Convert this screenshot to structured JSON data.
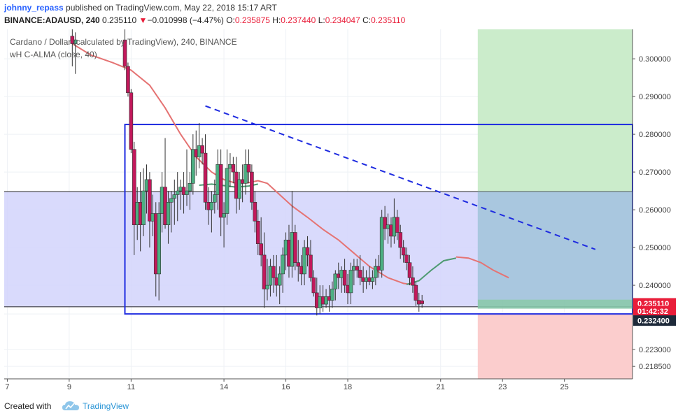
{
  "header": {
    "user": "johnny_repass",
    "published_text": "published on TradingView.com, May 22, 2018 15:17 ART",
    "symbol": "BINANCE:ADAUSD, 240",
    "last": "0.235110",
    "change_arrow": "▼",
    "change": "−0.010998 (−4.47%)",
    "o_label": "O:",
    "o_value": "0.235875",
    "h_label": "H:",
    "h_value": "0.237440",
    "l_label": "L:",
    "l_value": "0.234047",
    "c_label": "C:",
    "c_value": "0.235110"
  },
  "legend": {
    "line1": "Cardano / Dollar (calculated by TradingView), 240, BINANCE",
    "line2": "wH C-ALMA (close, 40)"
  },
  "footer": {
    "created_with": "Created with",
    "brand": "TradingView",
    "logo_icon": "tradingview-cloud-icon"
  },
  "colors": {
    "up": "#4caf82",
    "down": "#c2185b",
    "alma_red": "#e57373",
    "alma_green": "#4e9a71",
    "rect_blue": "#1e2be0",
    "target_green": "#c8ebc8",
    "stop_red": "#fbcaca",
    "zone_fill": "#d2d3fb",
    "price_badge": "#e91e3a",
    "badge_dark": "#1e2a3a"
  },
  "chart_data": {
    "type": "candlestick",
    "y_axis": {
      "ticks": [
        0.3,
        0.29,
        0.28,
        0.27,
        0.26,
        0.25,
        0.24,
        0.2324,
        0.223,
        0.2185
      ],
      "tick_labels": [
        "0.300000",
        "0.290000",
        "0.280000",
        "0.270000",
        "0.260000",
        "0.250000",
        "0.240000",
        "0.232400",
        "0.223000",
        "0.218500"
      ],
      "range": [
        0.2152,
        0.3078
      ]
    },
    "x_axis": {
      "tick_labels": [
        "7",
        "9",
        "11",
        "14",
        "16",
        "18",
        "21",
        "23",
        "25"
      ],
      "tick_days": [
        7,
        9,
        11,
        14,
        16,
        18,
        21,
        23,
        25
      ],
      "range": [
        6.9,
        27.2
      ]
    },
    "price_badges": [
      {
        "label": "0.235110",
        "value": 0.23511,
        "kind": "last"
      },
      {
        "label": "01:42:32",
        "value": 0.2338,
        "kind": "countdown"
      },
      {
        "label": "0.232400",
        "value": 0.2324,
        "kind": "level"
      }
    ],
    "boxes": [
      {
        "name": "consolidation-zone",
        "x_from": 6.9,
        "x_to": 27.2,
        "y_from": 0.2343,
        "y_to": 0.2648
      },
      {
        "name": "range-rectangle",
        "x_from": 10.8,
        "x_to": 27.2,
        "y_from": 0.2324,
        "y_to": 0.2826
      },
      {
        "name": "target-zone",
        "x_from": 22.2,
        "x_to": 27.2,
        "y_from": 0.2362,
        "y_to": 0.3078
      },
      {
        "name": "stop-zone",
        "x_from": 22.2,
        "x_to": 27.2,
        "y_from": 0.2152,
        "y_to": 0.2324
      }
    ],
    "trendline": {
      "x1": 13.4,
      "y1": 0.2875,
      "x2": 26.0,
      "y2": 0.2495
    },
    "alma": {
      "red": [
        [
          9.1,
          0.304
        ],
        [
          9.7,
          0.301
        ],
        [
          10.4,
          0.299
        ],
        [
          11.0,
          0.297
        ],
        [
          11.6,
          0.293
        ],
        [
          12.1,
          0.287
        ],
        [
          12.6,
          0.28
        ],
        [
          13.1,
          0.274
        ],
        [
          13.6,
          0.27
        ],
        [
          14.0,
          0.268
        ],
        [
          14.4,
          0.267
        ],
        [
          14.8,
          0.2672
        ],
        [
          15.1,
          0.2677
        ],
        [
          15.4,
          0.267
        ],
        [
          15.8,
          0.264
        ],
        [
          16.2,
          0.261
        ],
        [
          16.7,
          0.258
        ],
        [
          17.2,
          0.2548
        ],
        [
          17.7,
          0.252
        ],
        [
          18.2,
          0.2485
        ],
        [
          18.7,
          0.245
        ],
        [
          19.3,
          0.242
        ],
        [
          19.8,
          0.2405
        ],
        [
          20.2,
          0.24
        ]
      ],
      "green": [
        [
          13.2,
          0.2665
        ],
        [
          13.6,
          0.2668
        ],
        [
          14.0,
          0.2664
        ],
        [
          14.4,
          0.266
        ],
        [
          14.8,
          0.2663
        ],
        [
          15.1,
          0.2668
        ]
      ],
      "green2": [
        [
          19.9,
          0.2402
        ],
        [
          20.3,
          0.2412
        ],
        [
          20.7,
          0.244
        ],
        [
          21.1,
          0.2465
        ],
        [
          21.5,
          0.2472
        ]
      ],
      "red2": [
        [
          21.5,
          0.2475
        ],
        [
          21.9,
          0.2472
        ],
        [
          22.3,
          0.246
        ],
        [
          22.7,
          0.244
        ],
        [
          23.2,
          0.242
        ]
      ]
    },
    "candles": [
      {
        "x": 9.1,
        "o": 0.306,
        "h": 0.308,
        "l": 0.298,
        "c": 0.304
      },
      {
        "x": 9.2,
        "o": 0.304,
        "h": 0.307,
        "l": 0.296,
        "c": 0.305
      },
      {
        "x": 10.8,
        "o": 0.305,
        "h": 0.308,
        "l": 0.297,
        "c": 0.298
      },
      {
        "x": 10.9,
        "o": 0.298,
        "h": 0.299,
        "l": 0.29,
        "c": 0.291
      },
      {
        "x": 11.0,
        "o": 0.291,
        "h": 0.292,
        "l": 0.275,
        "c": 0.276
      },
      {
        "x": 11.1,
        "o": 0.276,
        "h": 0.278,
        "l": 0.248,
        "c": 0.256
      },
      {
        "x": 11.2,
        "o": 0.256,
        "h": 0.266,
        "l": 0.252,
        "c": 0.262
      },
      {
        "x": 11.3,
        "o": 0.262,
        "h": 0.27,
        "l": 0.249,
        "c": 0.256
      },
      {
        "x": 11.4,
        "o": 0.256,
        "h": 0.271,
        "l": 0.253,
        "c": 0.265
      },
      {
        "x": 11.5,
        "o": 0.265,
        "h": 0.272,
        "l": 0.259,
        "c": 0.268
      },
      {
        "x": 11.6,
        "o": 0.268,
        "h": 0.27,
        "l": 0.25,
        "c": 0.257
      },
      {
        "x": 11.7,
        "o": 0.257,
        "h": 0.264,
        "l": 0.253,
        "c": 0.259
      },
      {
        "x": 11.8,
        "o": 0.259,
        "h": 0.262,
        "l": 0.237,
        "c": 0.243
      },
      {
        "x": 11.9,
        "o": 0.243,
        "h": 0.262,
        "l": 0.236,
        "c": 0.259
      },
      {
        "x": 12.0,
        "o": 0.259,
        "h": 0.27,
        "l": 0.254,
        "c": 0.266
      },
      {
        "x": 12.1,
        "o": 0.266,
        "h": 0.279,
        "l": 0.255,
        "c": 0.256
      },
      {
        "x": 12.2,
        "o": 0.256,
        "h": 0.265,
        "l": 0.251,
        "c": 0.262
      },
      {
        "x": 12.3,
        "o": 0.262,
        "h": 0.265,
        "l": 0.254,
        "c": 0.263
      },
      {
        "x": 12.4,
        "o": 0.263,
        "h": 0.268,
        "l": 0.256,
        "c": 0.264
      },
      {
        "x": 12.5,
        "o": 0.264,
        "h": 0.27,
        "l": 0.257,
        "c": 0.265
      },
      {
        "x": 12.6,
        "o": 0.265,
        "h": 0.268,
        "l": 0.26,
        "c": 0.266
      },
      {
        "x": 12.7,
        "o": 0.266,
        "h": 0.27,
        "l": 0.259,
        "c": 0.264
      },
      {
        "x": 12.8,
        "o": 0.264,
        "h": 0.276,
        "l": 0.261,
        "c": 0.265
      },
      {
        "x": 12.9,
        "o": 0.265,
        "h": 0.27,
        "l": 0.26,
        "c": 0.267
      },
      {
        "x": 13.0,
        "o": 0.267,
        "h": 0.28,
        "l": 0.264,
        "c": 0.276
      },
      {
        "x": 13.1,
        "o": 0.276,
        "h": 0.281,
        "l": 0.269,
        "c": 0.274
      },
      {
        "x": 13.2,
        "o": 0.274,
        "h": 0.283,
        "l": 0.271,
        "c": 0.277
      },
      {
        "x": 13.3,
        "o": 0.277,
        "h": 0.279,
        "l": 0.272,
        "c": 0.275
      },
      {
        "x": 13.4,
        "o": 0.275,
        "h": 0.28,
        "l": 0.26,
        "c": 0.262
      },
      {
        "x": 13.5,
        "o": 0.262,
        "h": 0.266,
        "l": 0.256,
        "c": 0.26
      },
      {
        "x": 13.6,
        "o": 0.26,
        "h": 0.265,
        "l": 0.254,
        "c": 0.262
      },
      {
        "x": 13.7,
        "o": 0.262,
        "h": 0.268,
        "l": 0.259,
        "c": 0.264
      },
      {
        "x": 13.8,
        "o": 0.264,
        "h": 0.276,
        "l": 0.26,
        "c": 0.272
      },
      {
        "x": 13.9,
        "o": 0.272,
        "h": 0.276,
        "l": 0.253,
        "c": 0.258
      },
      {
        "x": 14.0,
        "o": 0.258,
        "h": 0.262,
        "l": 0.25,
        "c": 0.259
      },
      {
        "x": 14.1,
        "o": 0.259,
        "h": 0.276,
        "l": 0.256,
        "c": 0.271
      },
      {
        "x": 14.2,
        "o": 0.271,
        "h": 0.275,
        "l": 0.266,
        "c": 0.272
      },
      {
        "x": 14.3,
        "o": 0.272,
        "h": 0.274,
        "l": 0.267,
        "c": 0.27
      },
      {
        "x": 14.4,
        "o": 0.27,
        "h": 0.274,
        "l": 0.259,
        "c": 0.263
      },
      {
        "x": 14.5,
        "o": 0.263,
        "h": 0.27,
        "l": 0.26,
        "c": 0.268
      },
      {
        "x": 14.6,
        "o": 0.268,
        "h": 0.272,
        "l": 0.262,
        "c": 0.267
      },
      {
        "x": 14.7,
        "o": 0.267,
        "h": 0.276,
        "l": 0.264,
        "c": 0.272
      },
      {
        "x": 14.8,
        "o": 0.272,
        "h": 0.276,
        "l": 0.267,
        "c": 0.27
      },
      {
        "x": 14.9,
        "o": 0.27,
        "h": 0.272,
        "l": 0.26,
        "c": 0.262
      },
      {
        "x": 15.0,
        "o": 0.262,
        "h": 0.265,
        "l": 0.254,
        "c": 0.257
      },
      {
        "x": 15.1,
        "o": 0.257,
        "h": 0.26,
        "l": 0.248,
        "c": 0.251
      },
      {
        "x": 15.2,
        "o": 0.251,
        "h": 0.258,
        "l": 0.245,
        "c": 0.248
      },
      {
        "x": 15.3,
        "o": 0.248,
        "h": 0.254,
        "l": 0.234,
        "c": 0.239
      },
      {
        "x": 15.4,
        "o": 0.239,
        "h": 0.247,
        "l": 0.236,
        "c": 0.24
      },
      {
        "x": 15.5,
        "o": 0.24,
        "h": 0.247,
        "l": 0.237,
        "c": 0.245
      },
      {
        "x": 15.6,
        "o": 0.245,
        "h": 0.248,
        "l": 0.238,
        "c": 0.242
      },
      {
        "x": 15.7,
        "o": 0.242,
        "h": 0.248,
        "l": 0.237,
        "c": 0.24
      },
      {
        "x": 15.8,
        "o": 0.24,
        "h": 0.245,
        "l": 0.235,
        "c": 0.243
      },
      {
        "x": 15.9,
        "o": 0.243,
        "h": 0.25,
        "l": 0.238,
        "c": 0.248
      },
      {
        "x": 16.0,
        "o": 0.248,
        "h": 0.254,
        "l": 0.244,
        "c": 0.252
      },
      {
        "x": 16.1,
        "o": 0.252,
        "h": 0.256,
        "l": 0.242,
        "c": 0.245
      },
      {
        "x": 16.2,
        "o": 0.245,
        "h": 0.265,
        "l": 0.242,
        "c": 0.254
      },
      {
        "x": 16.3,
        "o": 0.254,
        "h": 0.256,
        "l": 0.244,
        "c": 0.246
      },
      {
        "x": 16.4,
        "o": 0.246,
        "h": 0.252,
        "l": 0.241,
        "c": 0.245
      },
      {
        "x": 16.5,
        "o": 0.245,
        "h": 0.248,
        "l": 0.24,
        "c": 0.243
      },
      {
        "x": 16.6,
        "o": 0.243,
        "h": 0.252,
        "l": 0.24,
        "c": 0.25
      },
      {
        "x": 16.7,
        "o": 0.25,
        "h": 0.253,
        "l": 0.245,
        "c": 0.248
      },
      {
        "x": 16.8,
        "o": 0.248,
        "h": 0.252,
        "l": 0.241,
        "c": 0.242
      },
      {
        "x": 16.9,
        "o": 0.242,
        "h": 0.244,
        "l": 0.237,
        "c": 0.238
      },
      {
        "x": 17.0,
        "o": 0.238,
        "h": 0.242,
        "l": 0.232,
        "c": 0.234
      },
      {
        "x": 17.1,
        "o": 0.234,
        "h": 0.24,
        "l": 0.2325,
        "c": 0.237
      },
      {
        "x": 17.2,
        "o": 0.237,
        "h": 0.24,
        "l": 0.233,
        "c": 0.235
      },
      {
        "x": 17.3,
        "o": 0.235,
        "h": 0.239,
        "l": 0.234,
        "c": 0.237
      },
      {
        "x": 17.4,
        "o": 0.237,
        "h": 0.24,
        "l": 0.233,
        "c": 0.236
      },
      {
        "x": 17.5,
        "o": 0.236,
        "h": 0.241,
        "l": 0.234,
        "c": 0.239
      },
      {
        "x": 17.6,
        "o": 0.239,
        "h": 0.244,
        "l": 0.236,
        "c": 0.243
      },
      {
        "x": 17.7,
        "o": 0.243,
        "h": 0.246,
        "l": 0.239,
        "c": 0.242
      },
      {
        "x": 17.8,
        "o": 0.242,
        "h": 0.245,
        "l": 0.238,
        "c": 0.244
      },
      {
        "x": 17.9,
        "o": 0.244,
        "h": 0.247,
        "l": 0.238,
        "c": 0.24
      },
      {
        "x": 18.0,
        "o": 0.24,
        "h": 0.243,
        "l": 0.235,
        "c": 0.238
      },
      {
        "x": 18.1,
        "o": 0.238,
        "h": 0.246,
        "l": 0.235,
        "c": 0.244
      },
      {
        "x": 18.2,
        "o": 0.244,
        "h": 0.247,
        "l": 0.24,
        "c": 0.245
      },
      {
        "x": 18.3,
        "o": 0.245,
        "h": 0.247,
        "l": 0.242,
        "c": 0.244
      },
      {
        "x": 18.4,
        "o": 0.244,
        "h": 0.248,
        "l": 0.24,
        "c": 0.242
      },
      {
        "x": 18.5,
        "o": 0.242,
        "h": 0.245,
        "l": 0.238,
        "c": 0.241
      },
      {
        "x": 18.6,
        "o": 0.241,
        "h": 0.244,
        "l": 0.239,
        "c": 0.242
      },
      {
        "x": 18.7,
        "o": 0.242,
        "h": 0.245,
        "l": 0.24,
        "c": 0.241
      },
      {
        "x": 18.8,
        "o": 0.241,
        "h": 0.244,
        "l": 0.239,
        "c": 0.242
      },
      {
        "x": 18.9,
        "o": 0.242,
        "h": 0.247,
        "l": 0.24,
        "c": 0.245
      },
      {
        "x": 19.0,
        "o": 0.245,
        "h": 0.248,
        "l": 0.242,
        "c": 0.244
      },
      {
        "x": 19.1,
        "o": 0.244,
        "h": 0.26,
        "l": 0.242,
        "c": 0.258
      },
      {
        "x": 19.2,
        "o": 0.258,
        "h": 0.261,
        "l": 0.252,
        "c": 0.255
      },
      {
        "x": 19.3,
        "o": 0.255,
        "h": 0.259,
        "l": 0.251,
        "c": 0.256
      },
      {
        "x": 19.4,
        "o": 0.256,
        "h": 0.258,
        "l": 0.25,
        "c": 0.253
      },
      {
        "x": 19.5,
        "o": 0.253,
        "h": 0.263,
        "l": 0.251,
        "c": 0.258
      },
      {
        "x": 19.6,
        "o": 0.258,
        "h": 0.26,
        "l": 0.252,
        "c": 0.254
      },
      {
        "x": 19.7,
        "o": 0.254,
        "h": 0.256,
        "l": 0.247,
        "c": 0.25
      },
      {
        "x": 19.8,
        "o": 0.25,
        "h": 0.252,
        "l": 0.246,
        "c": 0.248
      },
      {
        "x": 19.9,
        "o": 0.248,
        "h": 0.25,
        "l": 0.244,
        "c": 0.246
      },
      {
        "x": 20.0,
        "o": 0.246,
        "h": 0.248,
        "l": 0.24,
        "c": 0.242
      },
      {
        "x": 20.1,
        "o": 0.242,
        "h": 0.245,
        "l": 0.238,
        "c": 0.24
      },
      {
        "x": 20.2,
        "o": 0.24,
        "h": 0.241,
        "l": 0.2345,
        "c": 0.236
      },
      {
        "x": 20.3,
        "o": 0.236,
        "h": 0.238,
        "l": 0.233,
        "c": 0.235
      },
      {
        "x": 20.4,
        "o": 0.23588,
        "h": 0.23744,
        "l": 0.23405,
        "c": 0.23511
      }
    ]
  }
}
